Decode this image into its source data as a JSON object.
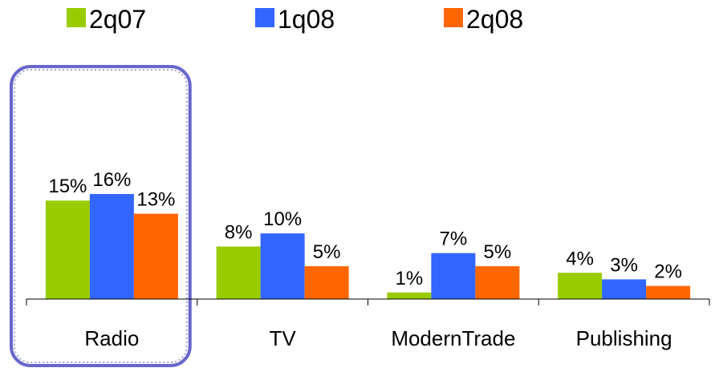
{
  "chart_data": {
    "type": "bar",
    "categories": [
      "Radio",
      "TV",
      "ModernTrade",
      "Publishing"
    ],
    "series": [
      {
        "name": "2q07",
        "color": "#99cc00",
        "values": [
          15,
          8,
          1,
          4
        ],
        "labels": [
          "15%",
          "8%",
          "1%",
          "4%"
        ]
      },
      {
        "name": "1q08",
        "color": "#3366ff",
        "values": [
          16,
          10,
          7,
          3
        ],
        "labels": [
          "16%",
          "10%",
          "7%",
          "3%"
        ]
      },
      {
        "name": "2q08",
        "color": "#ff6600",
        "values": [
          13,
          5,
          5,
          2
        ],
        "labels": [
          "13%",
          "5%",
          "5%",
          "2%"
        ]
      }
    ],
    "ylim": [
      0,
      16
    ],
    "grid": false,
    "legend_position": "top",
    "highlight": {
      "category": "Radio",
      "color": "#6666cc"
    }
  }
}
